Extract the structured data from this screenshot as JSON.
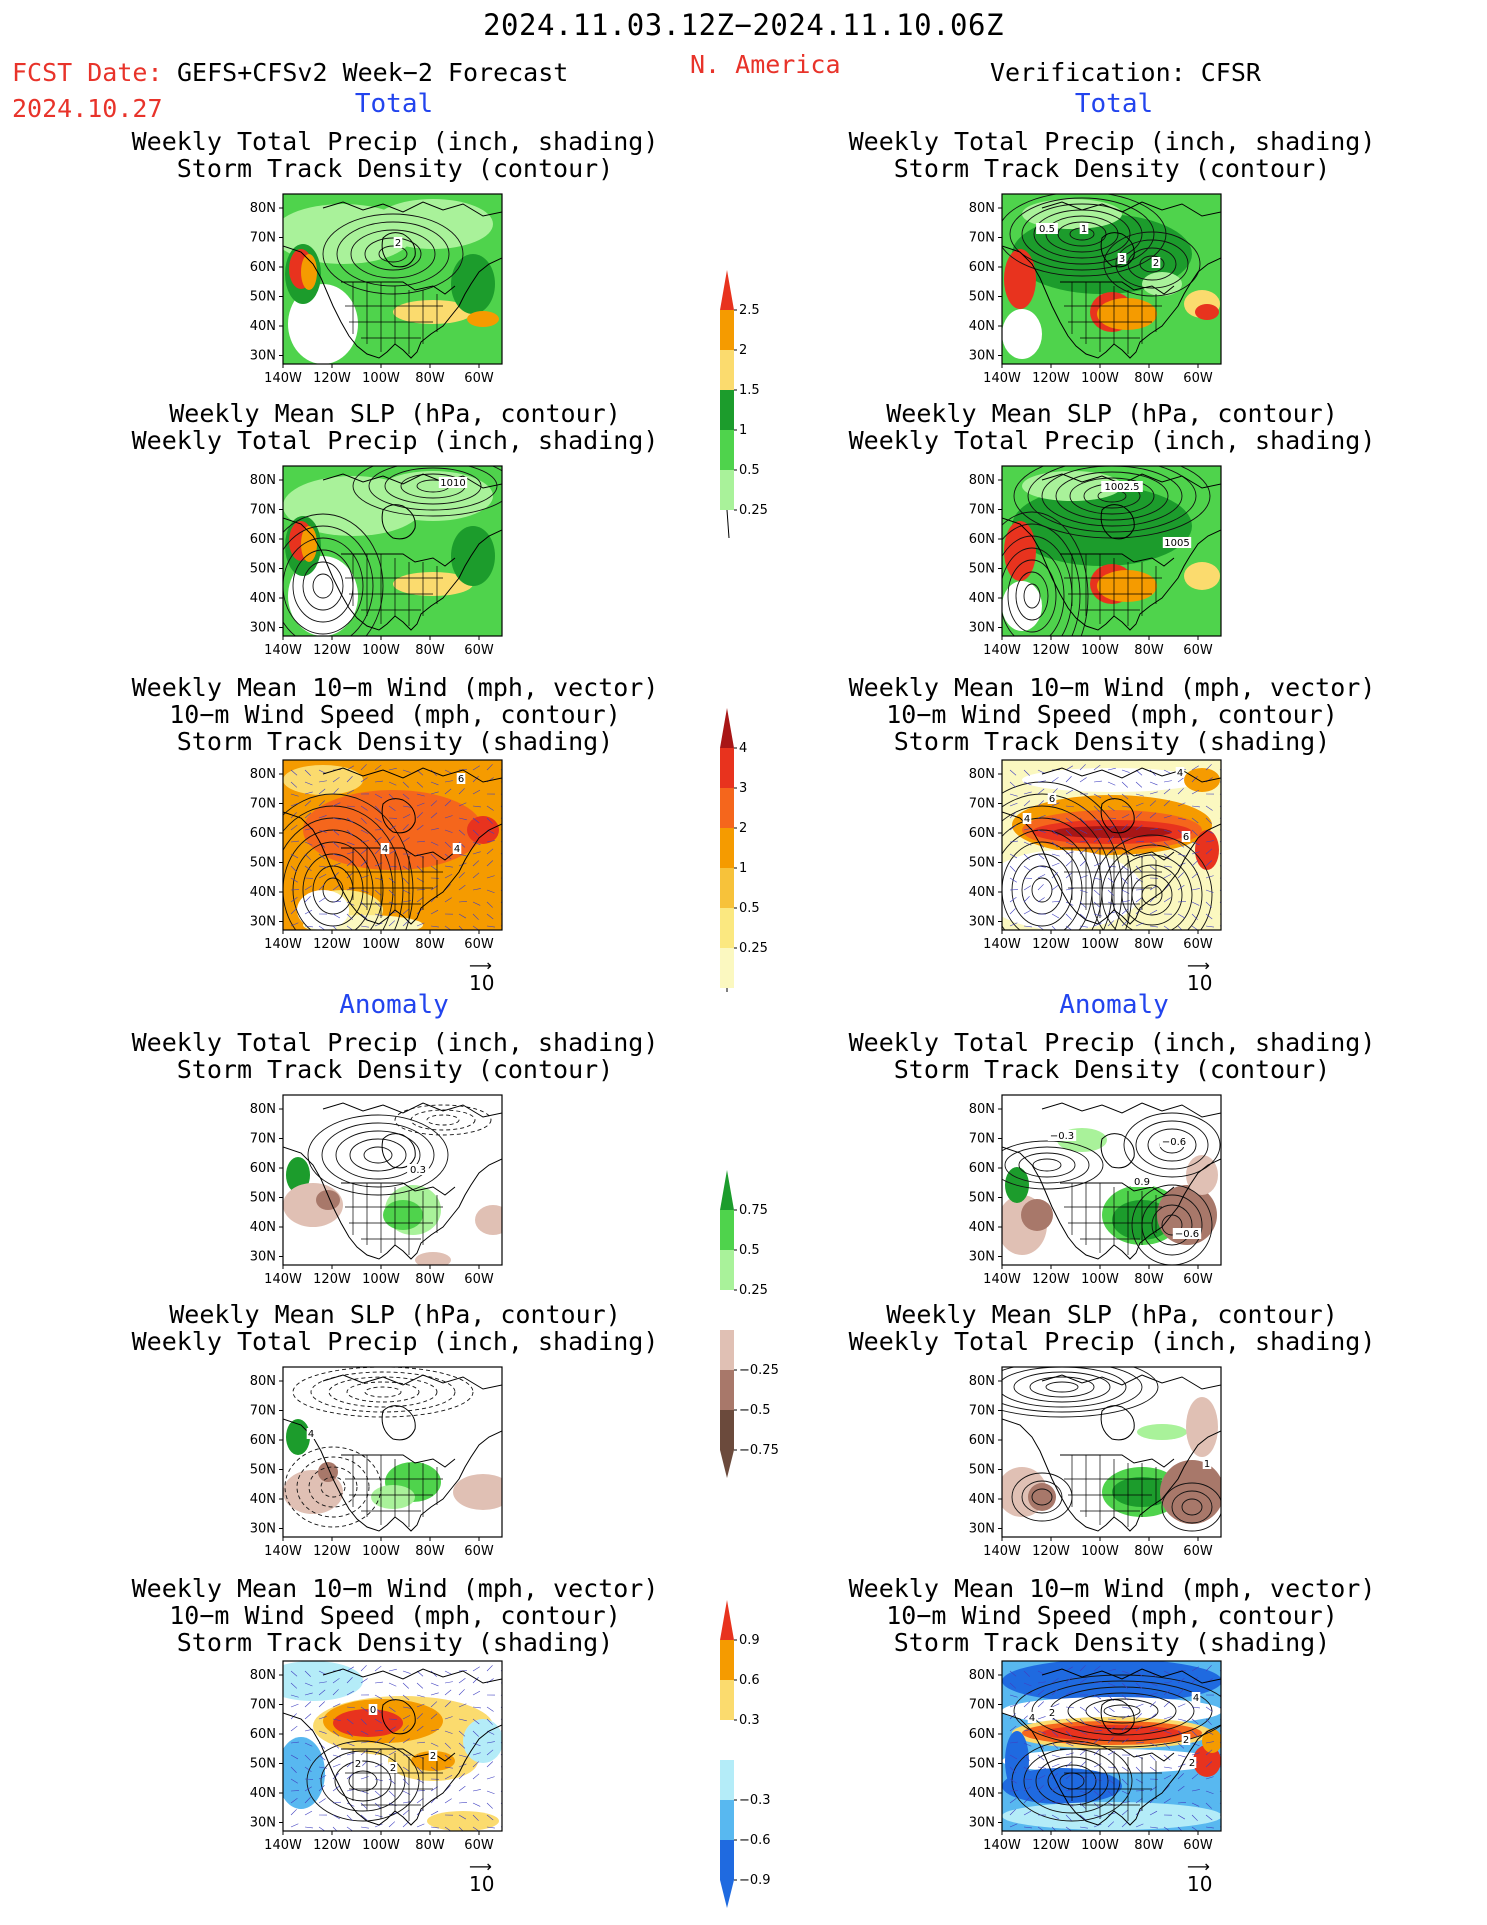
{
  "header": {
    "date_range": "2024.11.03.12Z−2024.11.10.06Z",
    "fcst_label": "FCST Date:",
    "fcst_model": "GEFS+CFSv2 Week−2 Forecast",
    "fcst_date": "2024.10.27",
    "region": "N. America",
    "verification": "Verification: CFSR"
  },
  "sections": {
    "total_left": "Total",
    "total_right": "Total",
    "anomaly_left": "Anomaly",
    "anomaly_right": "Anomaly"
  },
  "titles": {
    "precip_track": [
      "Weekly Total Precip (inch, shading)",
      "Storm Track Density (contour)"
    ],
    "slp_precip": [
      "Weekly Mean SLP (hPa, contour)",
      "Weekly Total Precip (inch, shading)"
    ],
    "wind_track": [
      "Weekly Mean 10−m Wind (mph, vector)",
      "10−m Wind Speed (mph, contour)",
      "Storm Track Density (shading)"
    ]
  },
  "axes": {
    "lat_labels": [
      "80N",
      "70N",
      "60N",
      "50N",
      "40N",
      "30N"
    ],
    "lon_labels": [
      "140W",
      "120W",
      "100W",
      "80W",
      "60W"
    ]
  },
  "ref_vector": "10",
  "panel_labels": {
    "r1l": [
      "2"
    ],
    "r1r": [
      "0.5",
      "1",
      "3",
      "2"
    ],
    "r2l": [
      "1010"
    ],
    "r2r": [
      "1002.5",
      "1005"
    ],
    "r3l": [
      "6",
      "4",
      "4"
    ],
    "r3r": [
      "4",
      "6",
      "4",
      "6"
    ],
    "r4l": [
      "0.3"
    ],
    "r4r": [
      "−0.3",
      "−0.6",
      "0.9",
      "−0.6"
    ],
    "r5l": [
      "4"
    ],
    "r5r": [
      "1"
    ],
    "r6l": [
      "0",
      "2",
      "2",
      "2"
    ],
    "r6r": [
      "4",
      "2",
      "4",
      "2",
      "2"
    ]
  },
  "colorbars": {
    "precip_total": {
      "labels": [
        "2.5",
        "2",
        "1.5",
        "1",
        "0.5",
        "0.25"
      ],
      "colors": [
        "#e8331e",
        "#f59b00",
        "#fbdb6e",
        "#1c9c2c",
        "#4fd34c",
        "#a9f29a"
      ]
    },
    "track_total": {
      "labels": [
        "4",
        "3",
        "2",
        "1",
        "0.5",
        "0.25"
      ],
      "colors": [
        "#a81616",
        "#e8331e",
        "#f5661c",
        "#f59b00",
        "#f7c23a",
        "#fbe880",
        "#fbf8c0"
      ]
    },
    "precip_anom": {
      "labels": [
        "0.75",
        "0.5",
        "0.25",
        "−0.25",
        "−0.5",
        "−0.75"
      ],
      "colors": [
        "#1c9c2c",
        "#4fd34c",
        "#a9f29a",
        "#ffffff",
        "#e0c0b4",
        "#a8786a",
        "#6b4a3c"
      ]
    },
    "track_anom": {
      "labels": [
        "0.9",
        "0.6",
        "0.3",
        "−0.3",
        "−0.6",
        "−0.9"
      ],
      "colors": [
        "#e8331e",
        "#f59b00",
        "#fbdb6e",
        "#ffffff",
        "#b4ecf8",
        "#58b8f0",
        "#1f6ae0"
      ]
    }
  }
}
